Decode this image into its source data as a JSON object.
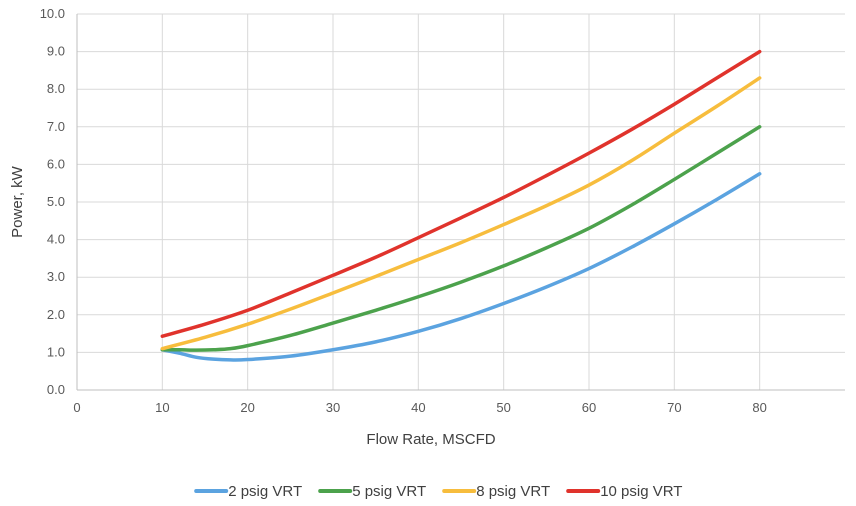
{
  "chart_data": {
    "type": "line",
    "title": "",
    "xlabel": "Flow Rate, MSCFD",
    "ylabel": "Power, kW",
    "xlim": [
      0,
      90
    ],
    "ylim": [
      0,
      10
    ],
    "x_ticks": [
      0,
      10,
      20,
      30,
      40,
      50,
      60,
      70,
      80
    ],
    "y_ticks": [
      "0.0",
      "1.0",
      "2.0",
      "3.0",
      "4.0",
      "5.0",
      "6.0",
      "7.0",
      "8.0",
      "9.0",
      "10.0"
    ],
    "grid": "vertical and horizontal major gridlines",
    "legend_position": "bottom",
    "series": [
      {
        "name": "2 psig VRT",
        "color": "#5ba3e0",
        "points": [
          [
            10,
            1.07
          ],
          [
            12,
            0.98
          ],
          [
            14,
            0.87
          ],
          [
            16,
            0.82
          ],
          [
            18,
            0.8
          ],
          [
            20,
            0.81
          ],
          [
            25,
            0.9
          ],
          [
            30,
            1.07
          ],
          [
            35,
            1.28
          ],
          [
            40,
            1.56
          ],
          [
            45,
            1.9
          ],
          [
            50,
            2.3
          ],
          [
            55,
            2.74
          ],
          [
            60,
            3.23
          ],
          [
            65,
            3.8
          ],
          [
            70,
            4.42
          ],
          [
            75,
            5.07
          ],
          [
            80,
            5.75
          ]
        ]
      },
      {
        "name": "5 psig VRT",
        "color": "#4ca24c",
        "points": [
          [
            10,
            1.07
          ],
          [
            12,
            1.07
          ],
          [
            14,
            1.06
          ],
          [
            16,
            1.07
          ],
          [
            18,
            1.1
          ],
          [
            20,
            1.18
          ],
          [
            25,
            1.45
          ],
          [
            30,
            1.78
          ],
          [
            35,
            2.12
          ],
          [
            40,
            2.48
          ],
          [
            45,
            2.87
          ],
          [
            50,
            3.3
          ],
          [
            55,
            3.78
          ],
          [
            60,
            4.3
          ],
          [
            65,
            4.92
          ],
          [
            70,
            5.6
          ],
          [
            75,
            6.3
          ],
          [
            80,
            7.0
          ]
        ]
      },
      {
        "name": "8 psig VRT",
        "color": "#f7bd3d",
        "points": [
          [
            10,
            1.1
          ],
          [
            15,
            1.4
          ],
          [
            20,
            1.75
          ],
          [
            25,
            2.15
          ],
          [
            30,
            2.58
          ],
          [
            35,
            3.02
          ],
          [
            40,
            3.47
          ],
          [
            45,
            3.92
          ],
          [
            50,
            4.4
          ],
          [
            55,
            4.9
          ],
          [
            60,
            5.45
          ],
          [
            65,
            6.1
          ],
          [
            70,
            6.83
          ],
          [
            75,
            7.55
          ],
          [
            80,
            8.3
          ]
        ]
      },
      {
        "name": "10 psig VRT",
        "color": "#e0332c",
        "points": [
          [
            10,
            1.43
          ],
          [
            15,
            1.75
          ],
          [
            20,
            2.12
          ],
          [
            25,
            2.58
          ],
          [
            30,
            3.05
          ],
          [
            35,
            3.53
          ],
          [
            40,
            4.05
          ],
          [
            45,
            4.58
          ],
          [
            50,
            5.12
          ],
          [
            55,
            5.7
          ],
          [
            60,
            6.3
          ],
          [
            65,
            6.93
          ],
          [
            70,
            7.6
          ],
          [
            75,
            8.3
          ],
          [
            80,
            9.0
          ]
        ]
      }
    ]
  }
}
